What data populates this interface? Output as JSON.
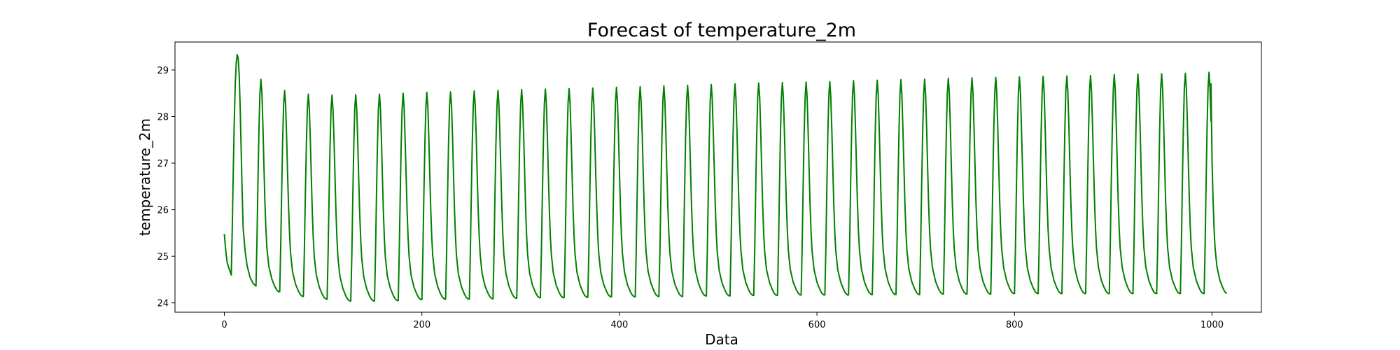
{
  "chart_data": {
    "type": "line",
    "title": "Forecast of temperature_2m",
    "xlabel": "Data",
    "ylabel": "temperature_2m",
    "xlim": [
      -50,
      1050
    ],
    "ylim": [
      23.8,
      29.6
    ],
    "x_ticks": [
      0,
      200,
      400,
      600,
      800,
      1000
    ],
    "y_ticks": [
      24,
      25,
      26,
      27,
      28,
      29
    ],
    "grid": false,
    "legend": "none",
    "series": [
      {
        "color": "#008000",
        "x_range": [
          0,
          999
        ],
        "period": 24,
        "first_cycle": [
          [
            0,
            25.48
          ],
          [
            1,
            25.2
          ],
          [
            2,
            25.0
          ],
          [
            3,
            24.85
          ],
          [
            5,
            24.72
          ],
          [
            7,
            24.6
          ],
          [
            8,
            25.6
          ],
          [
            9,
            26.8
          ],
          [
            10,
            27.9
          ],
          [
            11,
            28.7
          ],
          [
            12,
            29.15
          ],
          [
            13,
            29.33
          ],
          [
            14,
            29.25
          ],
          [
            15,
            28.9
          ],
          [
            16,
            28.2
          ],
          [
            17,
            27.3
          ],
          [
            18,
            26.4
          ],
          [
            19,
            25.6
          ],
          [
            21,
            25.1
          ],
          [
            23,
            24.8
          ],
          [
            26,
            24.55
          ],
          [
            29,
            24.42
          ],
          [
            31,
            24.38
          ]
        ],
        "cycle_peaks": [
          [
            13,
            29.33
          ],
          [
            37,
            28.8
          ],
          [
            61,
            28.56
          ],
          [
            85,
            28.48
          ],
          [
            109,
            28.46
          ],
          [
            133,
            28.47
          ],
          [
            157,
            28.48
          ],
          [
            181,
            28.5
          ],
          [
            205,
            28.52
          ],
          [
            229,
            28.53
          ],
          [
            253,
            28.55
          ],
          [
            277,
            28.56
          ],
          [
            301,
            28.58
          ],
          [
            325,
            28.59
          ],
          [
            349,
            28.6
          ],
          [
            373,
            28.61
          ],
          [
            397,
            28.63
          ],
          [
            421,
            28.64
          ],
          [
            445,
            28.66
          ],
          [
            469,
            28.67
          ],
          [
            493,
            28.69
          ],
          [
            517,
            28.7
          ],
          [
            541,
            28.72
          ],
          [
            565,
            28.73
          ],
          [
            589,
            28.74
          ],
          [
            613,
            28.75
          ],
          [
            637,
            28.77
          ],
          [
            661,
            28.78
          ],
          [
            685,
            28.79
          ],
          [
            709,
            28.8
          ],
          [
            733,
            28.82
          ],
          [
            757,
            28.83
          ],
          [
            781,
            28.84
          ],
          [
            805,
            28.85
          ],
          [
            829,
            28.86
          ],
          [
            853,
            28.87
          ],
          [
            877,
            28.88
          ],
          [
            901,
            28.9
          ],
          [
            925,
            28.91
          ],
          [
            949,
            28.92
          ],
          [
            973,
            28.93
          ],
          [
            997,
            28.95
          ]
        ],
        "cycle_troughs": [
          [
            35,
            24.36
          ],
          [
            59,
            24.24
          ],
          [
            83,
            24.14
          ],
          [
            107,
            24.08
          ],
          [
            131,
            24.04
          ],
          [
            155,
            24.04
          ],
          [
            179,
            24.05
          ],
          [
            203,
            24.07
          ],
          [
            227,
            24.08
          ],
          [
            251,
            24.08
          ],
          [
            275,
            24.09
          ],
          [
            299,
            24.1
          ],
          [
            323,
            24.11
          ],
          [
            347,
            24.11
          ],
          [
            371,
            24.12
          ],
          [
            395,
            24.13
          ],
          [
            419,
            24.13
          ],
          [
            443,
            24.14
          ],
          [
            467,
            24.14
          ],
          [
            491,
            24.15
          ],
          [
            515,
            24.15
          ],
          [
            539,
            24.16
          ],
          [
            563,
            24.16
          ],
          [
            587,
            24.17
          ],
          [
            611,
            24.17
          ],
          [
            635,
            24.17
          ],
          [
            659,
            24.18
          ],
          [
            683,
            24.18
          ],
          [
            707,
            24.18
          ],
          [
            731,
            24.19
          ],
          [
            755,
            24.19
          ],
          [
            779,
            24.19
          ],
          [
            803,
            24.2
          ],
          [
            827,
            24.2
          ],
          [
            851,
            24.2
          ],
          [
            875,
            24.2
          ],
          [
            899,
            24.2
          ],
          [
            923,
            24.2
          ],
          [
            947,
            24.2
          ],
          [
            971,
            24.2
          ],
          [
            995,
            24.2
          ]
        ],
        "last_point": [
          999,
          28.7
        ]
      }
    ]
  }
}
